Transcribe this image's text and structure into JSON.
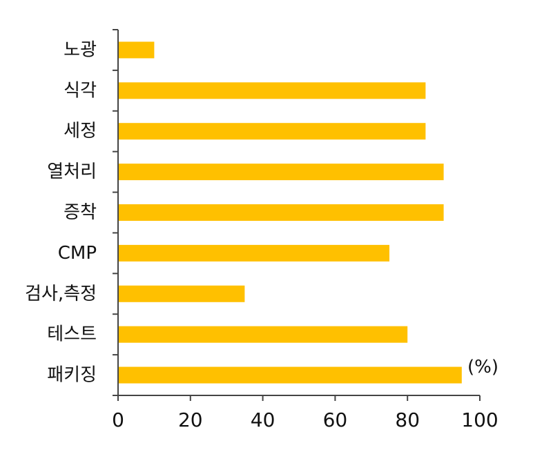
{
  "chart_data": {
    "type": "bar",
    "orientation": "horizontal",
    "categories": [
      "노광",
      "식각",
      "세정",
      "열처리",
      "증착",
      "CMP",
      "검사,측정",
      "테스트",
      "패키징"
    ],
    "values": [
      10,
      85,
      85,
      90,
      90,
      75,
      35,
      80,
      95
    ],
    "xlim": [
      0,
      100
    ],
    "xticks": [
      0,
      20,
      40,
      60,
      80,
      100
    ],
    "xtick_labels": [
      "0",
      "20",
      "40",
      "60",
      "80",
      "100"
    ],
    "unit_label": "(%)",
    "title": "",
    "xlabel": "",
    "ylabel": "",
    "grid": false,
    "legend": "none",
    "bar_color": "#FFC000"
  }
}
